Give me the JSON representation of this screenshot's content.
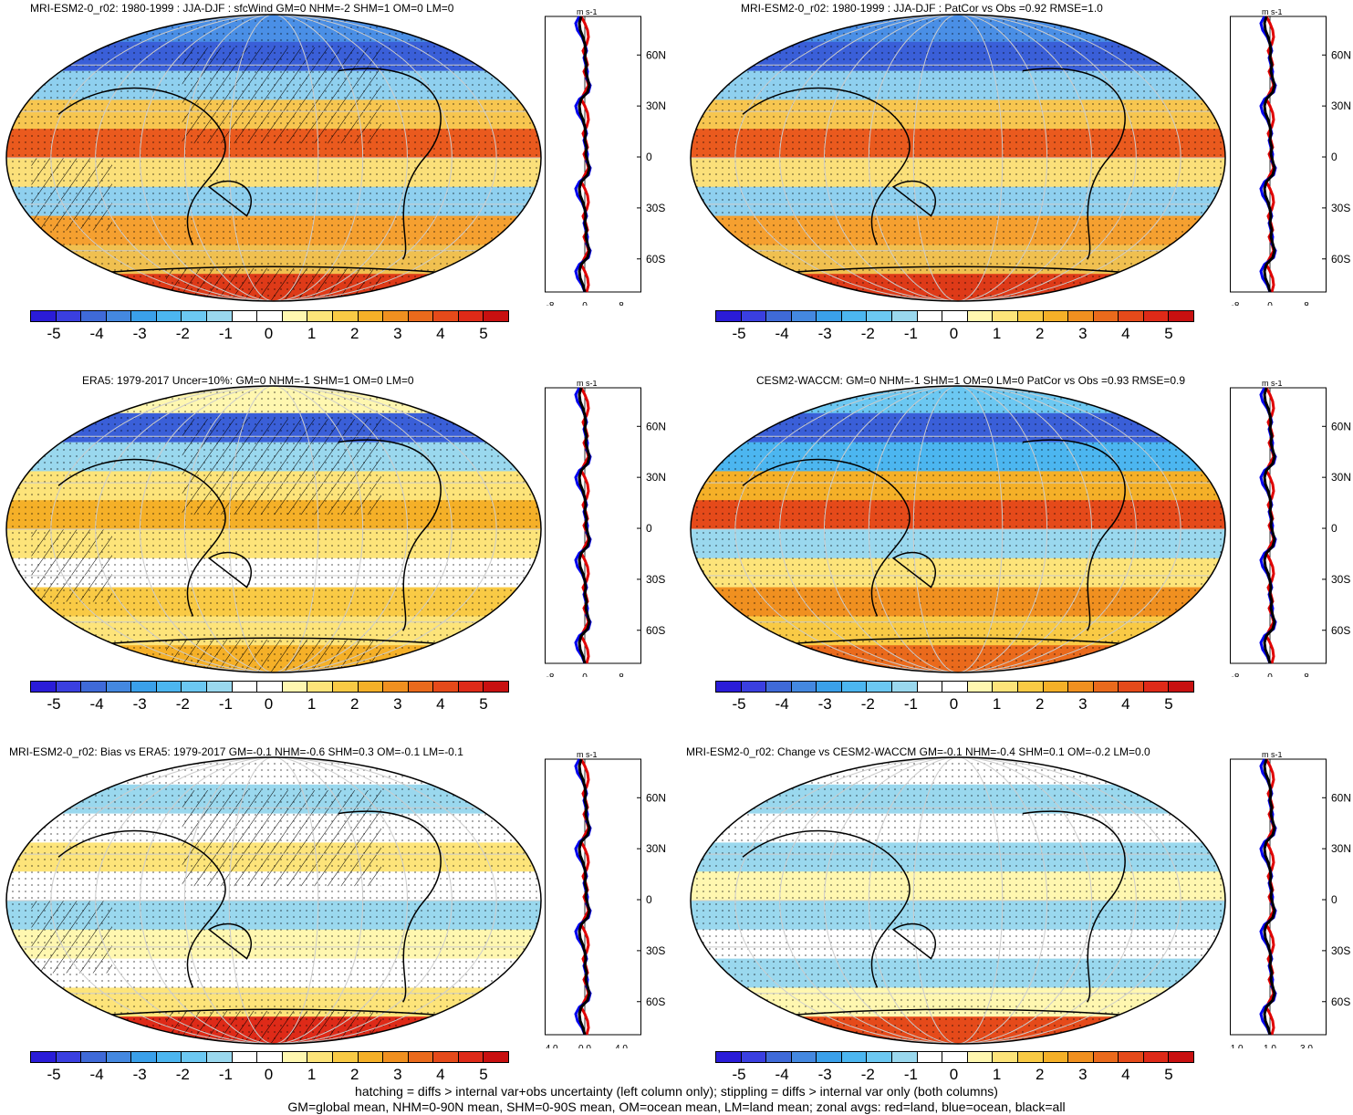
{
  "panels": [
    {
      "id": "p1",
      "title": "MRI-ESM2-0_r02: 1980-1999 : JJA-DJF : sfcWind GM=0 NHM=-2 SHM=1 OM=0 LM=0",
      "xticks": [
        "-8",
        "0",
        "8"
      ],
      "hatch": true
    },
    {
      "id": "p2",
      "title": "MRI-ESM2-0_r02: 1980-1999 : JJA-DJF : PatCor vs Obs =0.92 RMSE=1.0",
      "xticks": [
        "-8",
        "0",
        "8"
      ],
      "hatch": false
    },
    {
      "id": "p3",
      "title": "ERA5: 1979-2017 Uncer=10%: GM=0 NHM=-1 SHM=1 OM=0 LM=0",
      "xticks": [
        "-8",
        "0",
        "8"
      ],
      "hatch": true
    },
    {
      "id": "p4",
      "title": "CESM2-WACCM: GM=0 NHM=-1 SHM=1 OM=0 LM=0 PatCor vs Obs =0.93 RMSE=0.9",
      "xticks": [
        "-8",
        "0",
        "8"
      ],
      "hatch": false
    },
    {
      "id": "p5",
      "title": "MRI-ESM2-0_r02: Bias vs ERA5: 1979-2017 GM=-0.1 NHM=-0.6 SHM=0.3 OM=-0.1 LM=-0.1",
      "xticks": [
        "-4.0",
        "0.0",
        "4.0"
      ],
      "hatch": true
    },
    {
      "id": "p6",
      "title": "MRI-ESM2-0_r02: Change vs CESM2-WACCM GM=-0.1 NHM=-0.4 SHM=0.1 OM=-0.2 LM=0.0",
      "xticks": [
        "-1.0",
        "1.0",
        "3.0"
      ],
      "hatch": false
    }
  ],
  "zonal_units": "m s-1",
  "lat_labels": [
    "60N",
    "30N",
    "0",
    "30S",
    "60S"
  ],
  "colorbar_labels": [
    "-5",
    "-4",
    "-3",
    "-2",
    "-1",
    "0",
    "1",
    "2",
    "3",
    "4",
    "5"
  ],
  "colorbar_colors": [
    "#2a1cd8",
    "#3a3fe0",
    "#3f6ad8",
    "#4488e0",
    "#3aa0ea",
    "#4cb6f0",
    "#6cc8f2",
    "#9ad8ee",
    "#ffffff",
    "#ffffff",
    "#fff7b0",
    "#fde47a",
    "#f9ca45",
    "#f5b028",
    "#f09020",
    "#ea6a1c",
    "#e54a1a",
    "#de2a18",
    "#c81010"
  ],
  "footer": [
    "hatching = diffs > internal var+obs uncertainty (left column only); stippling = diffs > internal var only (both columns)",
    "GM=global mean, NHM=0-90N mean, SHM=0-90S mean, OM=ocean mean, LM=land mean; zonal avgs: red=land, blue=ocean, black=all"
  ]
}
